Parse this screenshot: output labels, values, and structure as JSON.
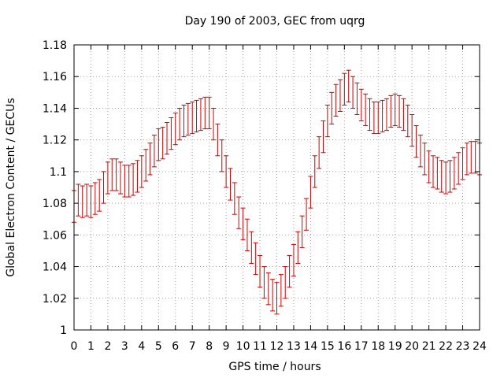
{
  "chart_data": {
    "type": "scatter",
    "title": "Day 190 of 2003, GEC from uqrg",
    "xlabel": "GPS time / hours",
    "ylabel": "Global Electron Content / GECUs",
    "xlim": [
      0,
      24
    ],
    "ylim": [
      1,
      1.18
    ],
    "xticks": [
      "0",
      "1",
      "2",
      "3",
      "4",
      "5",
      "6",
      "7",
      "8",
      "9",
      "10",
      "11",
      "12",
      "13",
      "14",
      "15",
      "16",
      "17",
      "18",
      "19",
      "20",
      "21",
      "22",
      "23",
      "24"
    ],
    "yticks": [
      "1",
      "1.02",
      "1.04",
      "1.06",
      "1.08",
      "1.1",
      "1.12",
      "1.14",
      "1.16",
      "1.18"
    ],
    "grid": true,
    "error_bars": true,
    "series_color": "#cc0000",
    "series": [
      {
        "x": [
          0,
          0.25,
          0.5,
          0.75,
          1,
          1.25,
          1.5,
          1.75,
          2,
          2.25,
          2.5,
          2.75,
          3,
          3.25,
          3.5,
          3.75,
          4,
          4.25,
          4.5,
          4.75,
          5,
          5.25,
          5.5,
          5.75,
          6,
          6.25,
          6.5,
          6.75,
          7,
          7.25,
          7.5,
          7.75,
          8,
          8.25,
          8.5,
          8.75,
          9,
          9.25,
          9.5,
          9.75,
          10,
          10.25,
          10.5,
          10.75,
          11,
          11.25,
          11.5,
          11.75,
          12,
          12.25,
          12.5,
          12.75,
          13,
          13.25,
          13.5,
          13.75,
          14,
          14.25,
          14.5,
          14.75,
          15,
          15.25,
          15.5,
          15.75,
          16,
          16.25,
          16.5,
          16.75,
          17,
          17.25,
          17.5,
          17.75,
          18,
          18.25,
          18.5,
          18.75,
          19,
          19.25,
          19.5,
          19.75,
          20,
          20.25,
          20.5,
          20.75,
          21,
          21.25,
          21.5,
          21.75,
          22,
          22.25,
          22.5,
          22.75,
          23,
          23.25,
          23.5,
          23.75,
          24
        ],
        "y": [
          1.078,
          1.082,
          1.081,
          1.082,
          1.081,
          1.083,
          1.085,
          1.09,
          1.096,
          1.098,
          1.098,
          1.096,
          1.094,
          1.094,
          1.095,
          1.097,
          1.1,
          1.104,
          1.108,
          1.113,
          1.117,
          1.118,
          1.121,
          1.124,
          1.127,
          1.13,
          1.132,
          1.133,
          1.134,
          1.135,
          1.136,
          1.137,
          1.137,
          1.13,
          1.12,
          1.11,
          1.1,
          1.092,
          1.083,
          1.074,
          1.067,
          1.06,
          1.052,
          1.045,
          1.037,
          1.03,
          1.026,
          1.022,
          1.02,
          1.025,
          1.03,
          1.037,
          1.044,
          1.052,
          1.062,
          1.073,
          1.087,
          1.1,
          1.112,
          1.122,
          1.132,
          1.14,
          1.145,
          1.148,
          1.152,
          1.154,
          1.15,
          1.146,
          1.142,
          1.139,
          1.136,
          1.134,
          1.134,
          1.135,
          1.136,
          1.138,
          1.139,
          1.138,
          1.136,
          1.132,
          1.126,
          1.119,
          1.113,
          1.108,
          1.103,
          1.1,
          1.099,
          1.097,
          1.096,
          1.097,
          1.099,
          1.102,
          1.105,
          1.108,
          1.109,
          1.109,
          1.108
        ],
        "err": 0.01
      }
    ]
  }
}
